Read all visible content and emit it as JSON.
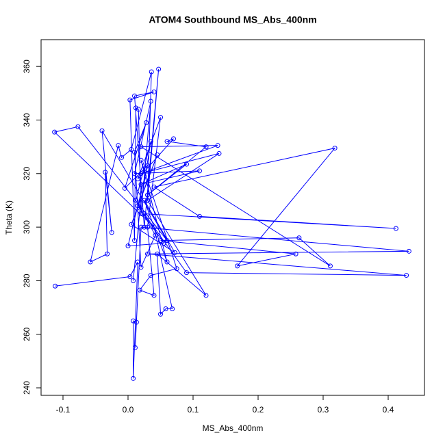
{
  "chart_data": {
    "type": "line",
    "title": "ATOM4 Southbound MS_Abs_400nm",
    "x_label": "MS_Abs_400nm",
    "y_label": "Theta (K)",
    "color": "#0000ff",
    "marker": "circle",
    "x": [
      -0.112,
      0.003,
      0.015,
      0.008,
      0.008,
      0.013,
      0.011,
      0.02,
      0.432,
      0.03,
      0.428,
      0.09,
      0.025,
      0.412,
      0.11,
      0.04,
      0.318,
      0.168,
      0.258,
      0.05,
      0.263,
      0.311,
      0.02,
      0.138,
      0.02,
      0.14,
      0.03,
      0.12,
      0.045,
      0.05,
      0.058,
      0.068,
      0.04,
      -0.113,
      -0.077,
      0.06,
      -0.04,
      -0.025,
      -0.035,
      -0.032,
      -0.058,
      -0.015,
      -0.01,
      0.005,
      0.036,
      0.03,
      0.047,
      0.025,
      0.01,
      0.04,
      0.003,
      0.01,
      0.012,
      0.016,
      0.02,
      0.035,
      0.01,
      0.11,
      0.02,
      0.09,
      0.03,
      0.12,
      0.06,
      0.07,
      0.015,
      0.05,
      0.03,
      0.04,
      0.018,
      0.035,
      0.075,
      0.02,
      0.06,
      0.025,
      0.072,
      0.005,
      0.045,
      0.015,
      0.055,
      0.0,
      0.03,
      -0.005,
      0.028,
      0.01,
      0.02,
      0.042,
      0.012,
      0.035,
      0.018,
      0.008
    ],
    "values": [
      278,
      281.5,
      287,
      243.5,
      265,
      264.5,
      255,
      300,
      291,
      290,
      282,
      283,
      305,
      299.5,
      304,
      315,
      329.5,
      285.5,
      290,
      295,
      296,
      285.5,
      330,
      330.5,
      320,
      327.5,
      310,
      274.5,
      290,
      267.5,
      269.5,
      269.5,
      300,
      335.5,
      337.5,
      295,
      336,
      298,
      320.5,
      290,
      287,
      330.5,
      326,
      329,
      358,
      310,
      359,
      300,
      349,
      350.5,
      347.5,
      295,
      344.5,
      344,
      305,
      347,
      320,
      321,
      316,
      323.5,
      312,
      330,
      332,
      333,
      318,
      341,
      300,
      274.5,
      276.5,
      282,
      284.5,
      325,
      287,
      310,
      290.5,
      301,
      327,
      308,
      294,
      293,
      323,
      314.5,
      339,
      328,
      285,
      297,
      310,
      332,
      306,
      280
    ],
    "xlim": [
      -0.1337,
      0.4558
    ],
    "ylim": [
      237.2,
      370
    ],
    "xticks": [
      -0.1,
      {
        "value": 0,
        "label": "0.0"
      },
      0.1,
      0.2,
      0.3,
      0.4
    ],
    "yticks": [
      240,
      260,
      280,
      300,
      320,
      340,
      360
    ]
  }
}
